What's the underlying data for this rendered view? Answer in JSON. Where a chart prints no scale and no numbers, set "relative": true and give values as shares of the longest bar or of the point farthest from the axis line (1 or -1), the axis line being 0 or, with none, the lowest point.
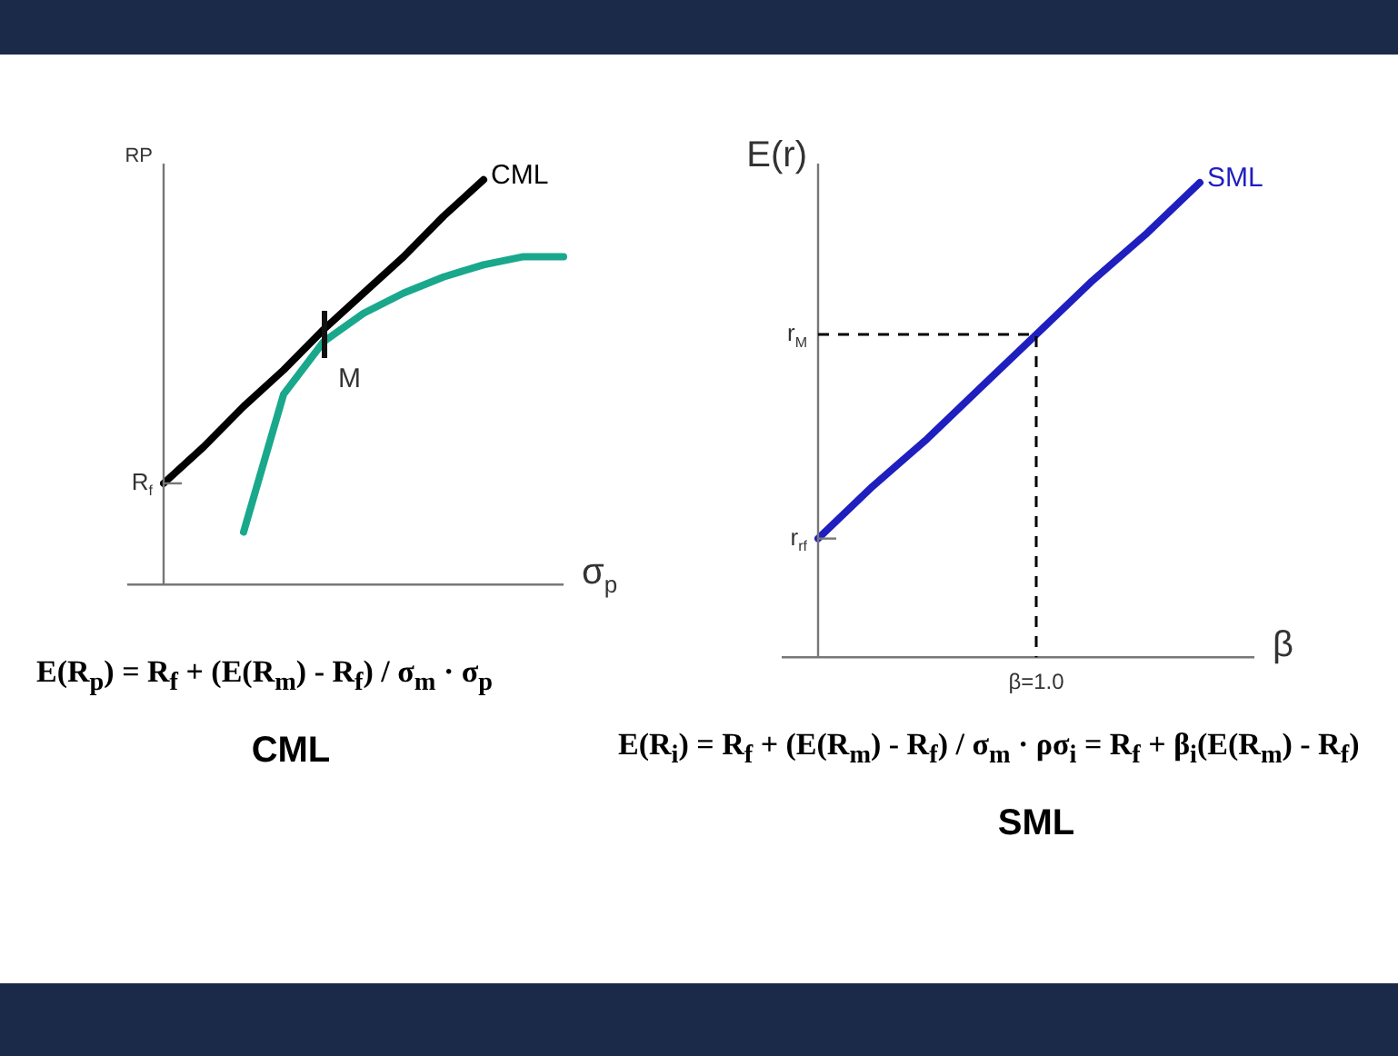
{
  "chart_data": [
    {
      "type": "line",
      "title": "CML",
      "subtitle": "E(R$_{p}$) = R$_{f}$ + (E(R$_{m}$) - R$_{f}$) / σ$_{m}$ · σ$_{p}$",
      "xlabel": "σ$_{p}$",
      "ylabel": "RP",
      "relative": true,
      "categories": [
        null,
        null,
        null,
        null,
        null,
        null,
        null,
        null,
        null,
        null,
        null
      ],
      "series": [
        {
          "name": "CML",
          "color": "#000000",
          "values": [
            0.25,
            0.34,
            0.44,
            0.53,
            0.63,
            0.72,
            0.81,
            0.91,
            1.0,
            null,
            null
          ]
        },
        {
          "color": "#1aa88c",
          "values": [
            null,
            null,
            0.13,
            0.47,
            0.6,
            0.67,
            0.72,
            0.76,
            0.79,
            0.81,
            0.81
          ]
        }
      ],
      "annotations": [
        "R$_{f}$",
        "M"
      ]
    },
    {
      "type": "line",
      "title": "SML",
      "subtitle": "E(R$_{i}$) = R$_{f}$ + (E(R$_{m}$) - R$_{f}$) / σ$_{m}$ · ρσ$_{i}$ = R$_{f}$ + β$_{i}$(E(R$_{m}$) - R$_{f}$)",
      "xlabel": "β",
      "ylabel": "E(r)",
      "relative": true,
      "categories": [
        null,
        null,
        null,
        null,
        null,
        null,
        null,
        null,
        null
      ],
      "series": [
        {
          "name": "SML",
          "color": "#1f1fbf",
          "values": [
            0.25,
            0.36,
            0.46,
            0.57,
            0.68,
            0.79,
            0.89,
            1.0,
            null
          ]
        }
      ],
      "ref_lines": [
        {
          "axis": "y",
          "value": 0.68,
          "label": "r$_{M}$",
          "line_style": "dashed"
        }
      ],
      "annotations": [
        "r$_{rf}$",
        "β=1.0"
      ]
    }
  ]
}
